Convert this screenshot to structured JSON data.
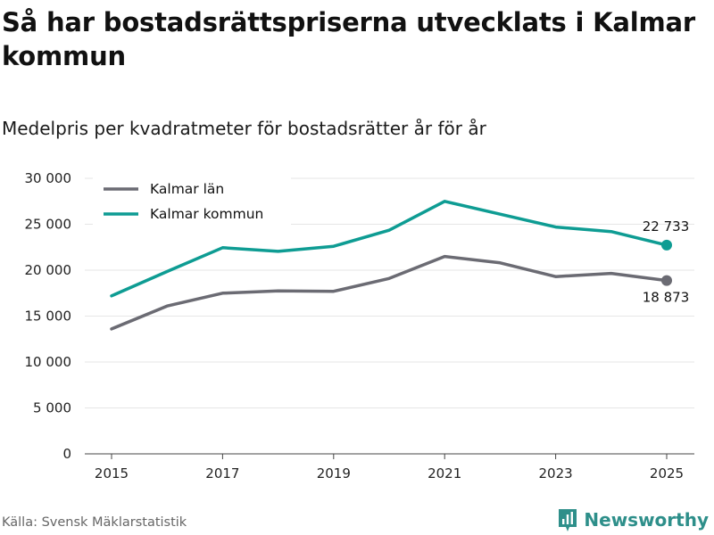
{
  "title": "Så har bostadsrättspriserna utvecklats i Kalmar kommun",
  "subtitle": "Medelpris per kvadratmeter för bostadsrätter år för år",
  "source": "Källa: Svensk Mäklarstatistik",
  "brand": "Newsworthy",
  "chart_data": {
    "type": "line",
    "title": "Så har bostadsrättspriserna utvecklats i Kalmar kommun",
    "subtitle": "Medelpris per kvadratmeter för bostadsrätter år för år",
    "xlabel": "",
    "ylabel": "",
    "x": [
      2015,
      2016,
      2017,
      2018,
      2019,
      2020,
      2021,
      2022,
      2023,
      2024,
      2025
    ],
    "x_tick_labels": [
      "2015",
      "2017",
      "2019",
      "2021",
      "2023",
      "2025"
    ],
    "x_ticks": [
      2015,
      2017,
      2019,
      2021,
      2023,
      2025
    ],
    "ylim": [
      0,
      30000
    ],
    "y_ticks": [
      0,
      5000,
      10000,
      15000,
      20000,
      25000,
      30000
    ],
    "y_tick_labels": [
      "0",
      "5 000",
      "10 000",
      "15 000",
      "20 000",
      "25 000",
      "30 000"
    ],
    "grid": true,
    "legend_position": "top-left",
    "series": [
      {
        "name": "Kalmar län",
        "color": "#6b6b73",
        "values": [
          13600,
          16100,
          17500,
          17750,
          17700,
          19100,
          21500,
          20800,
          19300,
          19650,
          18873
        ],
        "end_label": "18 873"
      },
      {
        "name": "Kalmar kommun",
        "color": "#0e9c93",
        "values": [
          17200,
          19850,
          22450,
          22050,
          22600,
          24350,
          27500,
          26100,
          24700,
          24200,
          22733
        ],
        "end_label": "22 733"
      }
    ]
  }
}
